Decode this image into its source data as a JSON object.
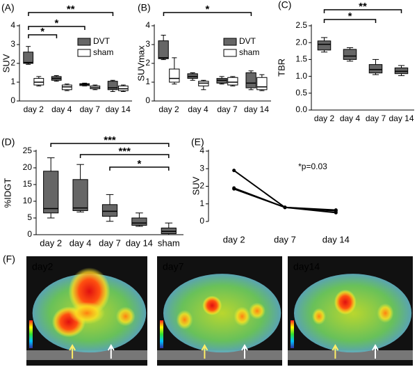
{
  "chart_data": [
    {
      "type": "box",
      "panel_label": "(A)",
      "ylabel": "SUV",
      "categories": [
        "day 2",
        "day 4",
        "day 7",
        "day 14"
      ],
      "ylim": [
        0,
        4
      ],
      "yticks": [
        0,
        1,
        2,
        3,
        4
      ],
      "legend": "upper right",
      "series": [
        {
          "name": "DVT",
          "color": "#666666",
          "values": [
            {
              "min": 1.95,
              "q1": 2.0,
              "median": 2.05,
              "q3": 2.6,
              "max": 2.9
            },
            {
              "min": 1.05,
              "q1": 1.1,
              "median": 1.2,
              "q3": 1.3,
              "max": 1.35
            },
            {
              "min": 0.8,
              "q1": 0.82,
              "median": 0.88,
              "q3": 0.92,
              "max": 0.95
            },
            {
              "min": 0.5,
              "q1": 0.6,
              "median": 0.7,
              "q3": 1.05,
              "max": 1.1
            }
          ]
        },
        {
          "name": "sham",
          "color": "#ffffff",
          "values": [
            {
              "min": 0.8,
              "q1": 0.85,
              "median": 1.0,
              "q3": 1.2,
              "max": 1.3
            },
            {
              "min": 0.55,
              "q1": 0.6,
              "median": 0.75,
              "q3": 0.85,
              "max": 0.9
            },
            {
              "min": 0.6,
              "q1": 0.65,
              "median": 0.72,
              "q3": 0.8,
              "max": 0.85
            },
            {
              "min": 0.5,
              "q1": 0.55,
              "median": 0.65,
              "q3": 0.8,
              "max": 0.85
            }
          ]
        }
      ],
      "annotations": [
        "*",
        "*",
        "**"
      ]
    },
    {
      "type": "box",
      "panel_label": "(B)",
      "ylabel": "SUVmax",
      "categories": [
        "day 2",
        "day 4",
        "day 7",
        "day 14"
      ],
      "ylim": [
        0,
        4
      ],
      "yticks": [
        0,
        1,
        2,
        3,
        4
      ],
      "legend": "upper right",
      "series": [
        {
          "name": "DVT",
          "color": "#666666",
          "values": [
            {
              "min": 2.2,
              "q1": 2.25,
              "median": 2.3,
              "q3": 3.2,
              "max": 3.5
            },
            {
              "min": 1.1,
              "q1": 1.2,
              "median": 1.3,
              "q3": 1.45,
              "max": 1.5
            },
            {
              "min": 0.9,
              "q1": 0.95,
              "median": 1.1,
              "q3": 1.2,
              "max": 1.3
            },
            {
              "min": 0.6,
              "q1": 0.7,
              "median": 0.95,
              "q3": 1.5,
              "max": 1.6
            }
          ]
        },
        {
          "name": "sham",
          "color": "#ffffff",
          "values": [
            {
              "min": 0.9,
              "q1": 1.0,
              "median": 1.2,
              "q3": 1.7,
              "max": 2.3
            },
            {
              "min": 0.6,
              "q1": 0.8,
              "median": 0.95,
              "q3": 1.05,
              "max": 1.1
            },
            {
              "min": 0.8,
              "q1": 0.85,
              "median": 1.0,
              "q3": 1.25,
              "max": 1.3
            },
            {
              "min": 0.55,
              "q1": 0.6,
              "median": 0.75,
              "q3": 1.25,
              "max": 1.4
            }
          ]
        }
      ],
      "annotations": [
        "*"
      ]
    },
    {
      "type": "box",
      "panel_label": "(C)",
      "ylabel": "TBR",
      "categories": [
        "day 2",
        "day 4",
        "day 7",
        "day 14"
      ],
      "ylim": [
        0,
        2.5
      ],
      "yticks": [
        {
          "value": 0,
          "label": "0.0"
        },
        {
          "value": 0.5,
          "label": "0.5"
        },
        {
          "value": 1,
          "label": "1.0"
        },
        {
          "value": 1.5,
          "label": "1.5"
        },
        {
          "value": 2,
          "label": "2.0"
        },
        {
          "value": 2.5,
          "label": "2.5"
        }
      ],
      "series": [
        {
          "color": "#666666",
          "values": [
            {
              "min": 1.72,
              "q1": 1.78,
              "median": 1.95,
              "q3": 2.05,
              "max": 2.15
            },
            {
              "min": 1.45,
              "q1": 1.5,
              "median": 1.6,
              "q3": 1.8,
              "max": 1.85
            },
            {
              "min": 1.05,
              "q1": 1.1,
              "median": 1.2,
              "q3": 1.35,
              "max": 1.5
            },
            {
              "min": 1.02,
              "q1": 1.08,
              "median": 1.15,
              "q3": 1.25,
              "max": 1.32
            }
          ]
        }
      ],
      "annotations": [
        "*",
        "**"
      ]
    },
    {
      "type": "box",
      "panel_label": "(D)",
      "ylabel": "%IDGT",
      "categories": [
        "day 2",
        "day 4",
        "day 7",
        "day 14",
        "sham"
      ],
      "ylim": [
        0,
        25
      ],
      "yticks": [
        0,
        5,
        10,
        15,
        20,
        25
      ],
      "series": [
        {
          "color": "#666666",
          "values": [
            {
              "min": 5,
              "q1": 6.5,
              "median": 7.8,
              "q3": 19,
              "max": 23
            },
            {
              "min": 6.8,
              "q1": 7.2,
              "median": 8,
              "q3": 16.5,
              "max": 21
            },
            {
              "min": 4,
              "q1": 5.5,
              "median": 7,
              "q3": 9,
              "max": 12
            },
            {
              "min": 2.5,
              "q1": 2.8,
              "median": 3.5,
              "q3": 5,
              "max": 6.5
            },
            {
              "min": 0,
              "q1": 0.3,
              "median": 1,
              "q3": 2,
              "max": 3.5
            }
          ]
        }
      ],
      "annotations": [
        "***",
        "***",
        "*"
      ]
    },
    {
      "type": "line",
      "panel_label": "(E)",
      "ylabel": "SUV",
      "categories": [
        "day 2",
        "day 7",
        "day 14"
      ],
      "ylim": [
        0,
        4
      ],
      "yticks": [
        0,
        1,
        2,
        3,
        4
      ],
      "series": [
        {
          "color": "#000000",
          "values": [
            2.9,
            0.8,
            0.6
          ]
        },
        {
          "color": "#000000",
          "values": [
            1.9,
            0.8,
            0.65
          ]
        },
        {
          "color": "#000000",
          "values": [
            1.85,
            0.8,
            0.5
          ]
        }
      ],
      "annotations": [
        "*p=0.03"
      ]
    }
  ],
  "figure": {
    "panel_label": "(F)",
    "images": [
      {
        "label": "day2"
      },
      {
        "label": "day7"
      },
      {
        "label": "day14"
      }
    ]
  }
}
